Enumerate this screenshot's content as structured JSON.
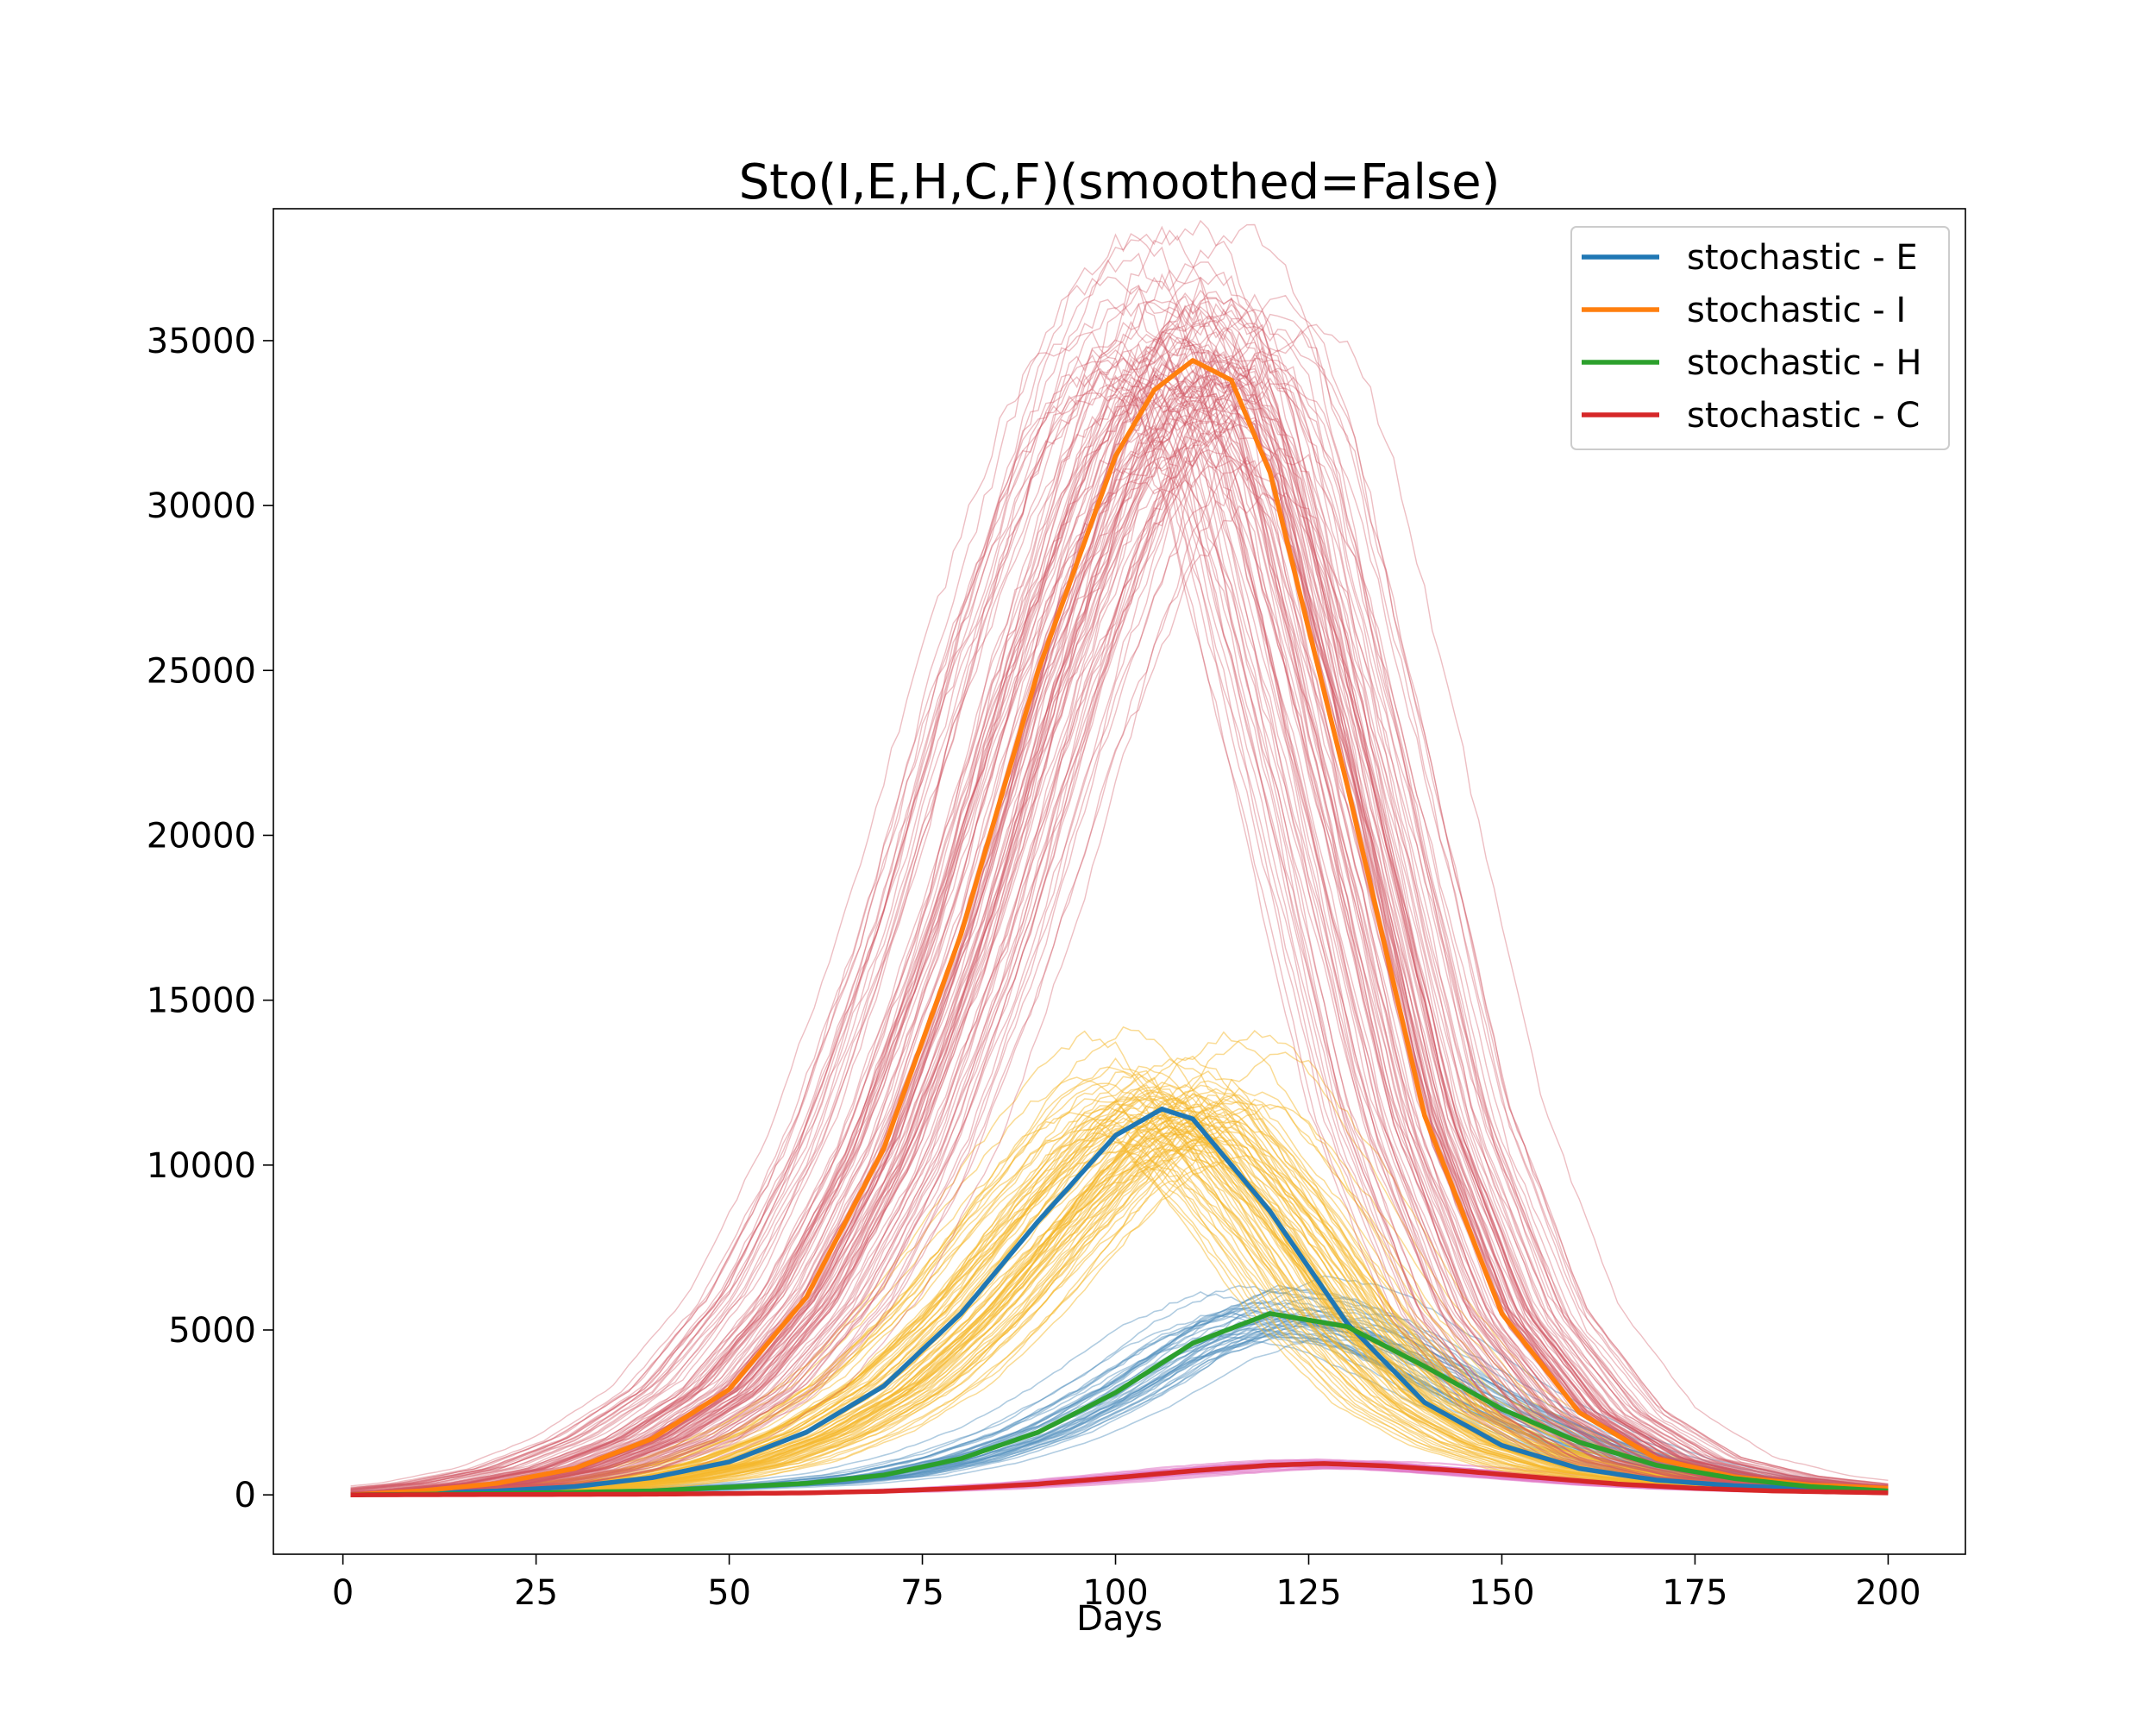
{
  "chart_data": {
    "type": "line",
    "title": "Sto(I,E,H,C,F)(smoothed=False)",
    "xlabel": "Days",
    "ylabel": "",
    "xlim": [
      -9,
      210
    ],
    "ylim": [
      -1800,
      39000
    ],
    "xticks": [
      0,
      25,
      50,
      75,
      100,
      125,
      150,
      175,
      200
    ],
    "yticks": [
      0,
      5000,
      10000,
      15000,
      20000,
      25000,
      30000,
      35000
    ],
    "legend_position": "top-right",
    "grid": false,
    "series": [
      {
        "name": "stochastic - E",
        "color": "#1f77b4",
        "x": [
          1,
          10,
          20,
          30,
          40,
          50,
          60,
          70,
          80,
          90,
          100,
          106,
          110,
          120,
          130,
          140,
          150,
          160,
          170,
          180,
          190,
          200
        ],
        "values": [
          0,
          40,
          120,
          250,
          520,
          1000,
          1900,
          3300,
          5500,
          8300,
          10900,
          11700,
          11400,
          8600,
          5200,
          2800,
          1500,
          800,
          450,
          280,
          180,
          110
        ]
      },
      {
        "name": "stochastic - I",
        "color": "#ff7f0e",
        "x": [
          1,
          10,
          20,
          30,
          40,
          50,
          60,
          70,
          80,
          90,
          100,
          105,
          110,
          115,
          120,
          130,
          140,
          150,
          160,
          170,
          180,
          190,
          200
        ],
        "values": [
          0,
          120,
          350,
          800,
          1700,
          3200,
          6000,
          10500,
          17000,
          25000,
          31500,
          33500,
          34400,
          33800,
          31000,
          21500,
          11500,
          5500,
          2500,
          1100,
          550,
          300,
          200
        ]
      },
      {
        "name": "stochastic - H",
        "color": "#2ca02c",
        "x": [
          1,
          20,
          40,
          60,
          70,
          80,
          90,
          100,
          110,
          120,
          130,
          140,
          150,
          160,
          170,
          180,
          190,
          200
        ],
        "values": [
          0,
          40,
          120,
          350,
          600,
          1100,
          1900,
          3100,
          4600,
          5500,
          5100,
          3900,
          2600,
          1600,
          900,
          500,
          250,
          120
        ]
      },
      {
        "name": "stochastic - C",
        "color": "#d62728",
        "x": [
          1,
          40,
          60,
          70,
          80,
          90,
          100,
          110,
          120,
          127,
          135,
          145,
          155,
          165,
          175,
          185,
          200
        ],
        "values": [
          0,
          20,
          60,
          110,
          200,
          330,
          520,
          730,
          900,
          950,
          880,
          720,
          520,
          330,
          200,
          120,
          60
        ]
      }
    ],
    "ensemble_colors": {
      "I": "#cf5560",
      "E": "#f5b72a",
      "H": "#4f8dbd",
      "C": "#e37fc9"
    }
  }
}
